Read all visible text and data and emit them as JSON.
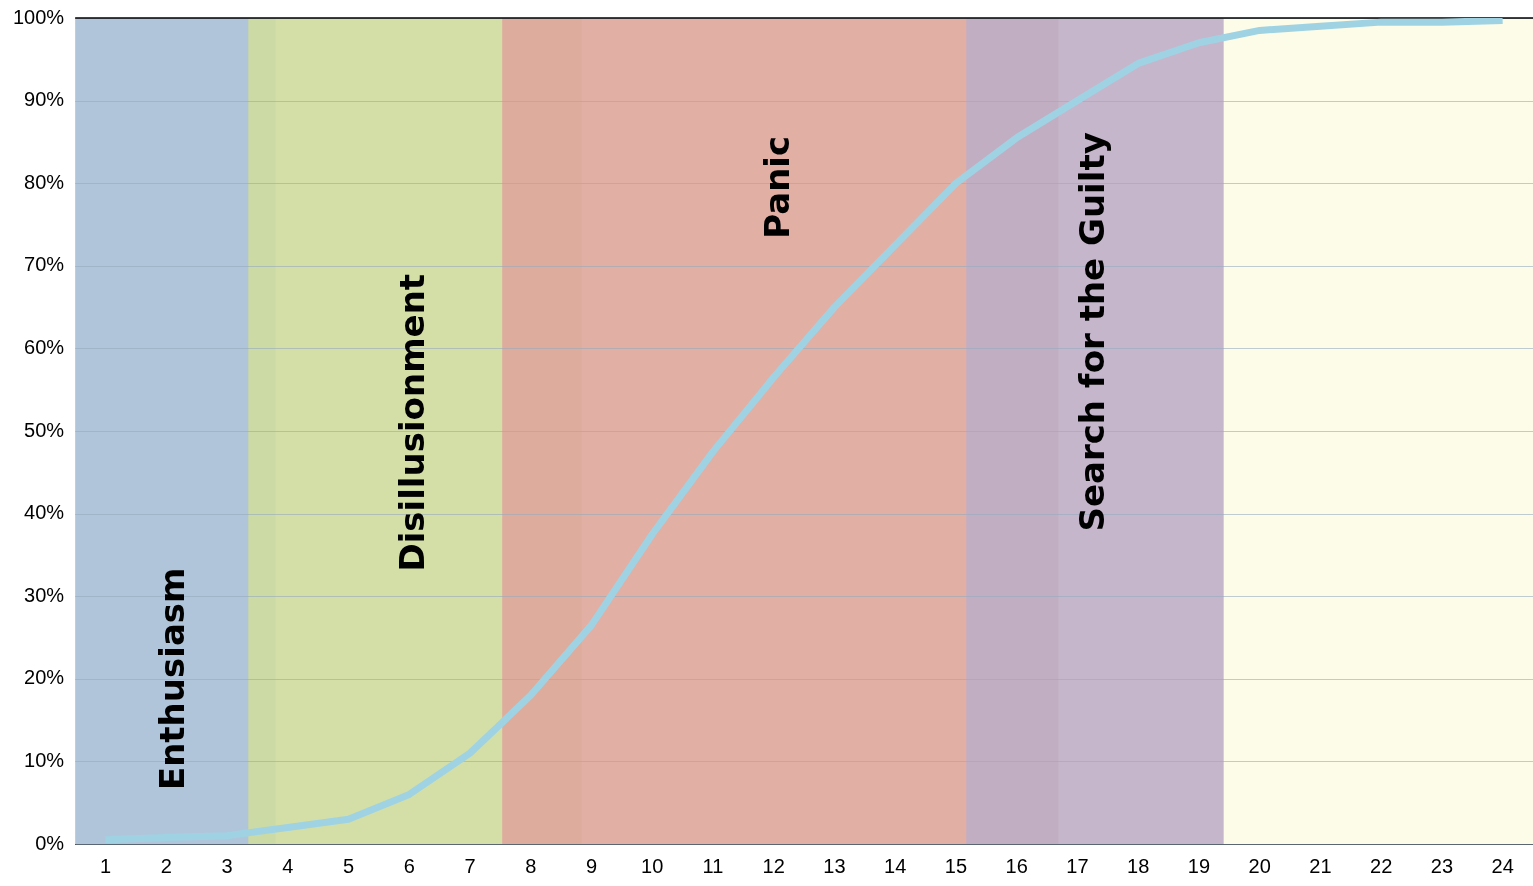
{
  "chart_data": {
    "type": "line",
    "x": [
      1,
      2,
      3,
      4,
      5,
      6,
      7,
      8,
      9,
      10,
      11,
      12,
      13,
      14,
      15,
      16,
      17,
      18,
      19,
      20,
      21,
      22,
      23,
      24
    ],
    "series": [
      {
        "color": "#9fd3e3",
        "values": [
          0.5,
          0.8,
          1,
          2,
          3,
          6,
          11,
          18,
          26.5,
          37.5,
          47.5,
          56.5,
          65,
          72.5,
          80,
          85.5,
          90,
          94.5,
          97,
          98.5,
          99,
          99.5,
          99.5,
          99.7
        ]
      }
    ],
    "xlim": [
      0.5,
      24.5
    ],
    "xticks": [
      1,
      2,
      3,
      4,
      5,
      6,
      7,
      8,
      9,
      10,
      11,
      12,
      13,
      14,
      15,
      16,
      17,
      18,
      19,
      20,
      21,
      22,
      23,
      24
    ],
    "ylim": [
      0,
      100
    ],
    "yticks": [
      {
        "value": 0,
        "label": "0%"
      },
      {
        "value": 10,
        "label": "10%"
      },
      {
        "value": 20,
        "label": "20%"
      },
      {
        "value": 30,
        "label": "30%"
      },
      {
        "value": 40,
        "label": "40%"
      },
      {
        "value": 50,
        "label": "50%"
      },
      {
        "value": 60,
        "label": "60%"
      },
      {
        "value": 70,
        "label": "70%"
      },
      {
        "value": 80,
        "label": "80%"
      },
      {
        "value": 90,
        "label": "90%"
      },
      {
        "value": 100,
        "label": "100%"
      }
    ],
    "grid": "y",
    "marker": "none",
    "line_style": "solid",
    "legend": false,
    "bands": [
      {
        "axis": "x",
        "from": 0.5,
        "to": 3.8,
        "label": "Enthusiasm",
        "color": "#a9bfd6"
      },
      {
        "axis": "x",
        "from": 3.35,
        "to": 8.84,
        "label": "Disillusionment",
        "color": "#cfdc9e"
      },
      {
        "axis": "x",
        "from": 7.53,
        "to": 16.69,
        "label": "Panic",
        "color": "#dfa69a"
      },
      {
        "axis": "x",
        "from": 15.17,
        "to": 19.41,
        "label": "Search for the Guilty",
        "color": "#bfaec6"
      },
      {
        "axis": "x",
        "from": 19.41,
        "to": 24.5,
        "label": null,
        "color": "#fdfce6"
      }
    ]
  }
}
